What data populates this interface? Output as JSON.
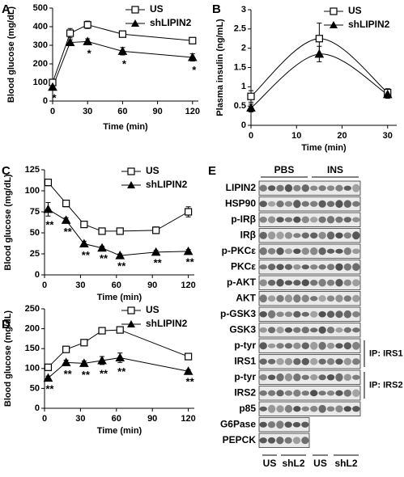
{
  "chart_data": [
    {
      "type": "line",
      "panel": "A",
      "xlabel": "Time (min)",
      "ylabel": "Blood glucose (mg/dL)",
      "x": [
        0,
        15,
        30,
        60,
        120
      ],
      "xlim": [
        0,
        125
      ],
      "xticks": [
        0,
        30,
        60,
        90,
        120
      ],
      "ylim": [
        0,
        500
      ],
      "yticks": [
        0,
        100,
        200,
        300,
        400,
        500
      ],
      "legend": "upper right",
      "smooth": false,
      "series": [
        {
          "name": "US",
          "color": "#000000",
          "marker": "square-open",
          "values": [
            100,
            365,
            410,
            360,
            325
          ],
          "errors": [
            15,
            25,
            20,
            15,
            10
          ]
        },
        {
          "name": "shLIPIN2",
          "color": "#000000",
          "marker": "triangle-filled",
          "values": [
            75,
            315,
            320,
            268,
            235
          ],
          "errors": [
            10,
            15,
            15,
            20,
            20
          ],
          "significance": [
            "*",
            null,
            "*",
            "*",
            "*"
          ]
        }
      ]
    },
    {
      "type": "line",
      "panel": "B",
      "xlabel": "Time (min)",
      "ylabel": "Plasma insulin (ng/mL)",
      "x": [
        0,
        15,
        30
      ],
      "xlim": [
        0,
        32
      ],
      "xticks": [
        0,
        10,
        20,
        30
      ],
      "ylim": [
        0,
        3
      ],
      "yticks": [
        0,
        0.5,
        1,
        1.5,
        2,
        2.5,
        3
      ],
      "legend": "upper right",
      "smooth": true,
      "series": [
        {
          "name": "US",
          "color": "#000000",
          "marker": "square-open",
          "values": [
            0.75,
            2.25,
            0.85
          ],
          "errors": [
            0.15,
            0.4,
            0.1
          ]
        },
        {
          "name": "shLIPIN2",
          "color": "#000000",
          "marker": "triangle-filled",
          "values": [
            0.45,
            1.85,
            0.8
          ],
          "errors": [
            0.1,
            0.2,
            0.1
          ]
        }
      ]
    },
    {
      "type": "line",
      "panel": "C",
      "xlabel": "Time (min)",
      "ylabel": "Blood glucose (mg/dL)",
      "x": [
        3,
        18,
        33,
        48,
        63,
        93,
        120
      ],
      "xlim": [
        0,
        125
      ],
      "xticks": [
        0,
        30,
        60,
        90,
        120
      ],
      "ylim": [
        0,
        125
      ],
      "yticks": [
        0,
        25,
        50,
        75,
        100,
        125
      ],
      "legend": "upper right",
      "smooth": false,
      "series": [
        {
          "name": "US",
          "color": "#000000",
          "marker": "square-open",
          "values": [
            110,
            85,
            60,
            52,
            52,
            53,
            75
          ],
          "errors": [
            4,
            4,
            2,
            2,
            2,
            4,
            6
          ]
        },
        {
          "name": "shLIPIN2",
          "color": "#000000",
          "marker": "triangle-filled",
          "values": [
            78,
            65,
            37,
            32,
            23,
            27,
            28
          ],
          "errors": [
            8,
            3,
            3,
            2,
            2,
            2,
            2
          ],
          "significance": [
            "**",
            "**",
            "**",
            "**",
            "**",
            "**",
            "**"
          ]
        }
      ]
    },
    {
      "type": "line",
      "panel": "D",
      "xlabel": "Time (min)",
      "ylabel": "Blood glucose (mg/dL)",
      "x": [
        3,
        18,
        33,
        48,
        63,
        120
      ],
      "xlim": [
        0,
        125
      ],
      "xticks": [
        0,
        30,
        60,
        90,
        120
      ],
      "ylim": [
        0,
        250
      ],
      "yticks": [
        0,
        50,
        100,
        150,
        200,
        250
      ],
      "legend": "upper right",
      "smooth": false,
      "series": [
        {
          "name": "US",
          "color": "#000000",
          "marker": "square-open",
          "values": [
            103,
            148,
            165,
            195,
            197,
            130
          ],
          "errors": [
            5,
            5,
            6,
            6,
            8,
            4
          ]
        },
        {
          "name": "shLIPIN2",
          "color": "#000000",
          "marker": "triangle-filled",
          "values": [
            76,
            115,
            113,
            120,
            127,
            93
          ],
          "errors": [
            5,
            6,
            6,
            10,
            12,
            4
          ],
          "significance": [
            "**",
            "**",
            "**",
            "**",
            "**",
            "**"
          ]
        }
      ]
    }
  ],
  "blot": {
    "panel": "E",
    "groups": [
      "PBS",
      "INS"
    ],
    "lanes": [
      "US",
      "shL2",
      "US",
      "shL2"
    ],
    "rows": [
      "LIPIN2",
      "HSP90",
      "p-IRβ",
      "IRβ",
      "p-PKCε",
      "PKCε",
      "p-AKT",
      "AKT",
      "p-GSK3",
      "GSK3",
      "p-tyr",
      "IRS1",
      "p-tyr",
      "IRS2",
      "p85",
      "G6Pase",
      "PEPCK"
    ],
    "ip_labels": [
      "IP: IRS1",
      "IP: IRS2"
    ]
  }
}
